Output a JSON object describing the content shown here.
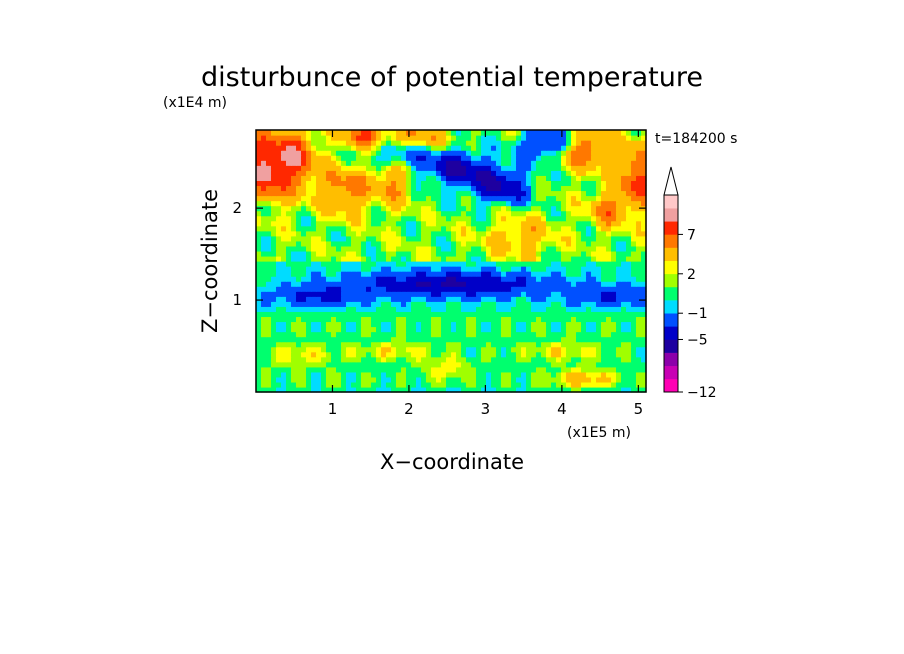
{
  "chart_data": {
    "type": "heatmap",
    "title": "disturbunce of potential temperature",
    "xlabel": "X−coordinate",
    "ylabel": "Z−coordinate",
    "x_unit": "(x1E5 m)",
    "y_unit": "(x1E4 m)",
    "time_label": "t=184200 s",
    "xlim": [
      0,
      5.1
    ],
    "ylim": [
      0,
      2.85
    ],
    "x_ticks": [
      {
        "value": 1,
        "label": "1"
      },
      {
        "value": 2,
        "label": "2"
      },
      {
        "value": 3,
        "label": "3"
      },
      {
        "value": 4,
        "label": "4"
      },
      {
        "value": 5,
        "label": "5"
      }
    ],
    "y_ticks": [
      {
        "value": 1,
        "label": "1"
      },
      {
        "value": 2,
        "label": "2"
      }
    ],
    "colorbar": {
      "levels": [
        -12,
        -11,
        -9,
        -7,
        -5,
        -3,
        -1,
        0,
        1,
        2,
        3,
        5,
        7,
        9,
        11
      ],
      "colors": [
        "#ff00b4",
        "#c800b4",
        "#8c00aa",
        "#1e00a0",
        "#0000c8",
        "#0050ff",
        "#00dcff",
        "#00ff6e",
        "#a0ff00",
        "#ffff00",
        "#ffbe00",
        "#ff7800",
        "#ff2800",
        "#f0a0a0",
        "#ffc8c8"
      ],
      "extend_max": true,
      "tick_labels": [
        {
          "value": 7,
          "label": "7"
        },
        {
          "value": 2,
          "label": "2"
        },
        {
          "value": -1,
          "label": "−1"
        },
        {
          "value": -5,
          "label": "−5"
        },
        {
          "value": -12,
          "label": "−12"
        }
      ]
    },
    "features": [
      {
        "x": 0.15,
        "z": 2.45,
        "rx": 0.3,
        "rz": 0.38,
        "amp": 8.5
      },
      {
        "x": 0.55,
        "z": 2.55,
        "rx": 0.25,
        "rz": 0.3,
        "amp": 6.0
      },
      {
        "x": 1.15,
        "z": 2.2,
        "rx": 0.35,
        "rz": 0.25,
        "amp": 5.0
      },
      {
        "x": 1.8,
        "z": 2.3,
        "rx": 0.25,
        "rz": 0.25,
        "amp": 4.0
      },
      {
        "x": 1.4,
        "z": 2.8,
        "rx": 0.3,
        "rz": 0.12,
        "amp": 6.0
      },
      {
        "x": 2.1,
        "z": 2.75,
        "rx": 0.35,
        "rz": 0.15,
        "amp": 5.0
      },
      {
        "x": 4.3,
        "z": 2.65,
        "rx": 0.35,
        "rz": 0.22,
        "amp": 5.5
      },
      {
        "x": 5.0,
        "z": 2.35,
        "rx": 0.25,
        "rz": 0.35,
        "amp": 6.5
      },
      {
        "x": 4.6,
        "z": 2.0,
        "rx": 0.25,
        "rz": 0.2,
        "amp": 4.5
      },
      {
        "x": 3.45,
        "z": 1.7,
        "rx": 0.45,
        "rz": 0.22,
        "amp": 3.0
      },
      {
        "x": 1.9,
        "z": 2.6,
        "rx": 0.35,
        "rz": 0.15,
        "amp": -5.0
      },
      {
        "x": 2.6,
        "z": 2.45,
        "rx": 0.45,
        "rz": 0.2,
        "amp": -6.0
      },
      {
        "x": 3.2,
        "z": 2.25,
        "rx": 0.4,
        "rz": 0.2,
        "amp": -6.0
      },
      {
        "x": 3.8,
        "z": 2.7,
        "rx": 0.35,
        "rz": 0.15,
        "amp": -6.0
      },
      {
        "x": 0.05,
        "z": 2.0,
        "rx": 0.12,
        "rz": 0.1,
        "amp": -3.0
      },
      {
        "x": 2.5,
        "z": 1.18,
        "rx": 1.25,
        "rz": 0.14,
        "amp": -5.5
      },
      {
        "x": 0.8,
        "z": 1.05,
        "rx": 0.6,
        "rz": 0.12,
        "amp": -3.5
      },
      {
        "x": 4.6,
        "z": 1.05,
        "rx": 0.6,
        "rz": 0.12,
        "amp": -3.0
      },
      {
        "x": 1.8,
        "z": 0.45,
        "rx": 0.55,
        "rz": 0.1,
        "amp": 2.0
      },
      {
        "x": 2.5,
        "z": 0.25,
        "rx": 0.3,
        "rz": 0.12,
        "amp": 2.0
      },
      {
        "x": 0.6,
        "z": 0.4,
        "rx": 0.4,
        "rz": 0.12,
        "amp": 2.0
      },
      {
        "x": 4.0,
        "z": 0.45,
        "rx": 0.5,
        "rz": 0.1,
        "amp": 2.0
      },
      {
        "x": 4.3,
        "z": 0.15,
        "rx": 0.4,
        "rz": 0.1,
        "amp": 3.5
      }
    ]
  }
}
